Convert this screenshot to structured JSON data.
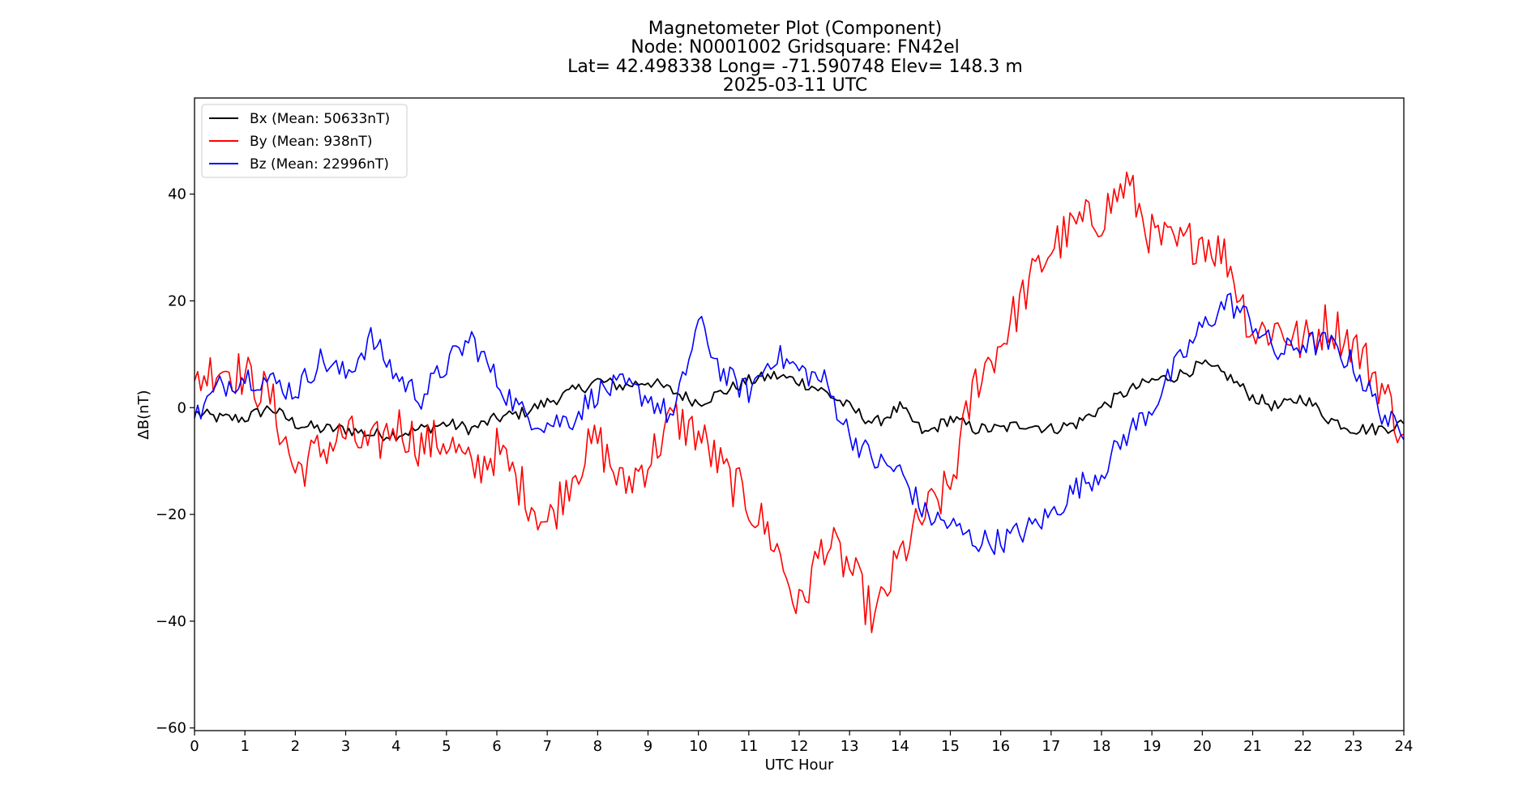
{
  "chart_data": {
    "type": "line",
    "title_lines": [
      "Magnetometer Plot (Component)",
      "Node:  N0001002     Gridsquare:  FN42el",
      "Lat= 42.498338    Long= -71.590748    Elev= 148.3 m",
      "2025-03-11  UTC"
    ],
    "xlabel": "UTC Hour",
    "ylabel": "ΔB(nT)",
    "xlim": [
      0,
      24
    ],
    "ylim": [
      -60.5,
      58
    ],
    "xticks": [
      0,
      1,
      2,
      3,
      4,
      5,
      6,
      7,
      8,
      9,
      10,
      11,
      12,
      13,
      14,
      15,
      16,
      17,
      18,
      19,
      20,
      21,
      22,
      23,
      24
    ],
    "xtick_labels": [
      "0",
      "1",
      "2",
      "3",
      "4",
      "5",
      "6",
      "7",
      "8",
      "9",
      "10",
      "11",
      "12",
      "13",
      "14",
      "15",
      "16",
      "17",
      "18",
      "19",
      "20",
      "21",
      "22",
      "23",
      "24"
    ],
    "yticks": [
      -60,
      -40,
      -20,
      0,
      20,
      40
    ],
    "ytick_labels": [
      "−60",
      "−40",
      "−20",
      "0",
      "20",
      "40"
    ],
    "legend_position": "upper-left",
    "series": [
      {
        "name": "Bx (Mean: 50633nT)",
        "color": "#000000",
        "x": [
          0,
          0.5,
          1,
          1.5,
          2,
          2.5,
          3,
          3.5,
          4,
          4.5,
          5,
          5.5,
          6,
          6.5,
          7,
          7.5,
          8,
          8.5,
          9,
          9.5,
          10,
          10.5,
          11,
          11.5,
          12,
          12.5,
          13,
          13.5,
          14,
          14.5,
          15,
          15.5,
          16,
          16.5,
          17,
          17.5,
          18,
          18.5,
          19,
          19.5,
          20,
          20.5,
          21,
          21.5,
          22,
          22.5,
          23,
          23.5,
          24
        ],
        "values": [
          -1,
          -2,
          -2,
          0,
          -3,
          -4,
          -4,
          -5,
          -5,
          -4,
          -3,
          -4,
          -2,
          -1,
          1,
          3,
          5,
          4,
          5,
          3,
          1,
          3,
          5,
          6,
          5,
          3,
          0,
          -3,
          0,
          -5,
          -2,
          -4,
          -4,
          -3,
          -4,
          -3,
          0,
          3,
          5,
          6,
          8,
          6,
          2,
          0,
          2,
          -2,
          -4,
          -4,
          -3
        ]
      },
      {
        "name": "By (Mean: 938nT)",
        "color": "#ff0000",
        "x": [
          0,
          0.5,
          1,
          1.5,
          2,
          2.5,
          3,
          3.5,
          4,
          4.5,
          5,
          5.5,
          6,
          6.5,
          7,
          7.5,
          8,
          8.5,
          9,
          9.5,
          10,
          10.5,
          11,
          11.5,
          12,
          12.5,
          13,
          13.5,
          14,
          14.5,
          15,
          15.5,
          16,
          16.5,
          17,
          17.5,
          18,
          18.5,
          19,
          19.5,
          20,
          20.5,
          21,
          21.5,
          22,
          22.5,
          23,
          23.5,
          24
        ],
        "values": [
          5,
          8,
          6,
          2,
          -12,
          -8,
          -5,
          -8,
          -3,
          -7,
          -6,
          -12,
          -8,
          -15,
          -22,
          -12,
          -6,
          -15,
          -10,
          -2,
          -5,
          -12,
          -18,
          -25,
          -38,
          -25,
          -30,
          -40,
          -28,
          -20,
          -15,
          5,
          12,
          22,
          30,
          34,
          36,
          42,
          32,
          30,
          32,
          28,
          14,
          15,
          12,
          16,
          12,
          5,
          -5
        ]
      },
      {
        "name": "Bz (Mean: 22996nT)",
        "color": "#0000ff",
        "x": [
          0,
          0.5,
          1,
          1.5,
          2,
          2.5,
          3,
          3.5,
          4,
          4.5,
          5,
          5.5,
          6,
          6.5,
          7,
          7.5,
          8,
          8.5,
          9,
          9.5,
          10,
          10.5,
          11,
          11.5,
          12,
          12.5,
          13,
          13.5,
          14,
          14.5,
          15,
          15.5,
          16,
          16.5,
          17,
          17.5,
          18,
          18.5,
          19,
          19.5,
          20,
          20.5,
          21,
          21.5,
          22,
          22.5,
          23,
          23.5,
          24
        ],
        "values": [
          -2,
          4,
          6,
          5,
          3,
          9,
          6,
          13,
          6,
          2,
          8,
          13,
          5,
          -1,
          -3,
          -2,
          3,
          4,
          2,
          -2,
          16,
          6,
          3,
          10,
          7,
          5,
          -5,
          -10,
          -12,
          -20,
          -22,
          -25,
          -25,
          -23,
          -20,
          -15,
          -12,
          -5,
          0,
          8,
          15,
          20,
          16,
          10,
          12,
          12,
          8,
          0,
          -6
        ]
      }
    ]
  }
}
